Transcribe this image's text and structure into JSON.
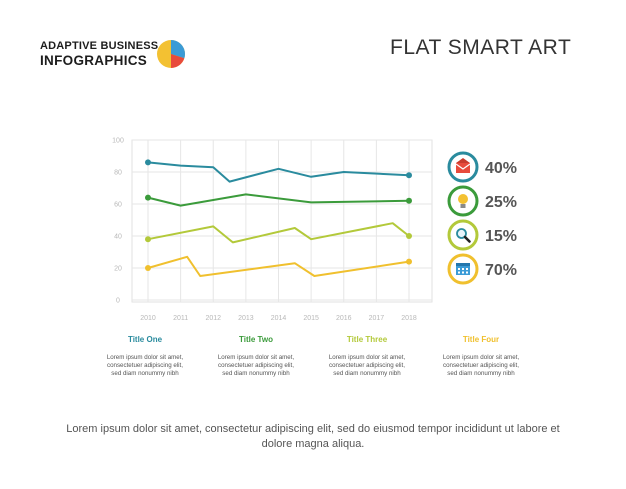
{
  "brand": {
    "line1": "ADAPTIVE BUSINESS",
    "line2": "INFOGRAPHICS"
  },
  "title": "FLAT SMART ART",
  "chart_data": {
    "type": "line",
    "x": [
      "2010",
      "2011",
      "2012",
      "2013",
      "2014",
      "2015",
      "2016",
      "2017",
      "2018"
    ],
    "ylim": [
      0,
      100
    ],
    "yticks": [
      0,
      20,
      40,
      60,
      80,
      100
    ],
    "grid": true,
    "series": [
      {
        "color": "#2a8b9e",
        "points": [
          [
            2010,
            86
          ],
          [
            2011,
            84
          ],
          [
            2012,
            83
          ],
          [
            2012.5,
            74
          ],
          [
            2014,
            82
          ],
          [
            2015,
            77
          ],
          [
            2016,
            80
          ],
          [
            2018,
            78
          ]
        ]
      },
      {
        "color": "#3b9b3b",
        "points": [
          [
            2010,
            64
          ],
          [
            2011,
            59
          ],
          [
            2013,
            66
          ],
          [
            2015,
            61
          ],
          [
            2018,
            62
          ]
        ]
      },
      {
        "color": "#b3c93a",
        "points": [
          [
            2010,
            38
          ],
          [
            2012,
            46
          ],
          [
            2012.6,
            36
          ],
          [
            2014.5,
            45
          ],
          [
            2015,
            38
          ],
          [
            2017.5,
            48
          ],
          [
            2018,
            40
          ]
        ]
      },
      {
        "color": "#f0c02e",
        "points": [
          [
            2010,
            20
          ],
          [
            2011.2,
            27
          ],
          [
            2011.6,
            15
          ],
          [
            2014.5,
            23
          ],
          [
            2015.1,
            15
          ],
          [
            2018,
            24
          ]
        ]
      }
    ]
  },
  "legend": [
    {
      "pct": "40%",
      "color": "#2a8b9e",
      "icon": "mail-icon"
    },
    {
      "pct": "25%",
      "color": "#3b9b3b",
      "icon": "lightbulb-icon"
    },
    {
      "pct": "15%",
      "color": "#b3c93a",
      "icon": "magnifier-icon"
    },
    {
      "pct": "70%",
      "color": "#f0c02e",
      "icon": "calendar-icon"
    }
  ],
  "columns": [
    {
      "title": "Title One",
      "color": "#2a8b9e",
      "body": [
        "Lorem ipsum dolor sit amet,",
        "consectetuer adipiscing elit,",
        "sed diam nonummy nibh"
      ]
    },
    {
      "title": "Title Two",
      "color": "#3b9b3b",
      "body": [
        "Lorem ipsum dolor sit amet,",
        "consectetuer adipiscing elit,",
        "sed diam nonummy nibh"
      ]
    },
    {
      "title": "Title Three",
      "color": "#b3c93a",
      "body": [
        "Lorem ipsum dolor sit amet,",
        "consectetuer adipiscing elit,",
        "sed diam nonummy nibh"
      ]
    },
    {
      "title": "Title Four",
      "color": "#f0c02e",
      "body": [
        "Lorem ipsum dolor sit amet,",
        "consectetuer adipiscing elit,",
        "sed diam nonummy nibh"
      ]
    }
  ],
  "footer": "Lorem ipsum dolor sit amet, consectetur adipiscing elit, sed do eiusmod tempor incididunt ut labore et dolore magna aliqua."
}
